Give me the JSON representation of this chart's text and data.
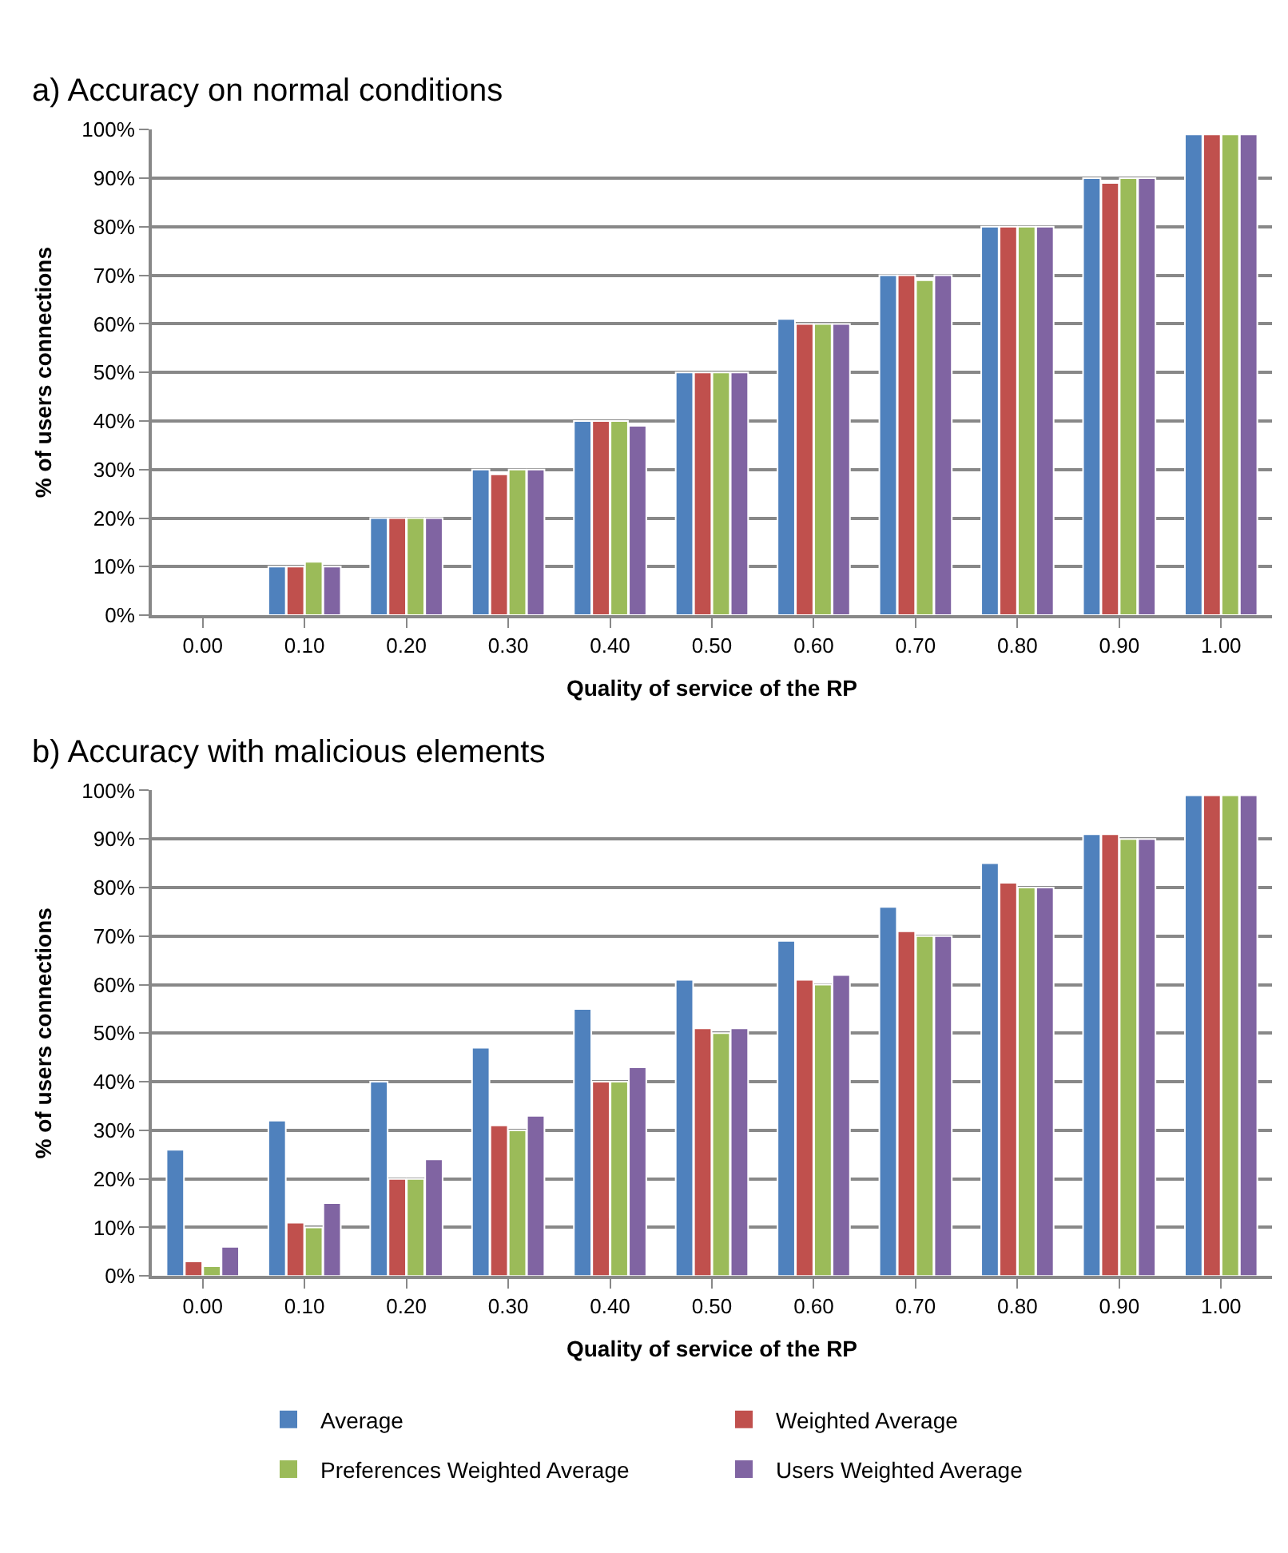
{
  "chart_data": [
    {
      "type": "bar",
      "title": "a) Accuracy on normal conditions",
      "xlabel": "Quality of service of the RP",
      "ylabel": "% of users connections",
      "categories": [
        "0.00",
        "0.10",
        "0.20",
        "0.30",
        "0.40",
        "0.50",
        "0.60",
        "0.70",
        "0.80",
        "0.90",
        "1.00"
      ],
      "series": [
        {
          "name": "Average",
          "color": "#4f81bd",
          "values": [
            null,
            10,
            20,
            30,
            40,
            50,
            61,
            70,
            80,
            90,
            99
          ]
        },
        {
          "name": "Weighted Average",
          "color": "#c0504d",
          "values": [
            null,
            10,
            20,
            29,
            40,
            50,
            60,
            70,
            80,
            89,
            99
          ]
        },
        {
          "name": "Preferences Weighted Average",
          "color": "#9bbb59",
          "values": [
            null,
            11,
            20,
            30,
            40,
            50,
            60,
            69,
            80,
            90,
            99
          ]
        },
        {
          "name": "Users Weighted Average",
          "color": "#8064a2",
          "values": [
            null,
            10,
            20,
            30,
            39,
            50,
            60,
            70,
            80,
            90,
            99
          ]
        }
      ],
      "ylim": [
        0,
        100
      ],
      "yticks": [
        {
          "value": 0,
          "label": "0%"
        },
        {
          "value": 10,
          "label": "10%"
        },
        {
          "value": 20,
          "label": "20%"
        },
        {
          "value": 30,
          "label": "30%"
        },
        {
          "value": 40,
          "label": "40%"
        },
        {
          "value": 50,
          "label": "50%"
        },
        {
          "value": 60,
          "label": "60%"
        },
        {
          "value": 70,
          "label": "70%"
        },
        {
          "value": 80,
          "label": "80%"
        },
        {
          "value": 90,
          "label": "90%"
        },
        {
          "value": 100,
          "label": "100%"
        }
      ],
      "grid": "y",
      "legend": "bottom"
    },
    {
      "type": "bar",
      "title": "b) Accuracy with malicious elements",
      "xlabel": "Quality of service of the RP",
      "ylabel": "% of users connections",
      "categories": [
        "0.00",
        "0.10",
        "0.20",
        "0.30",
        "0.40",
        "0.50",
        "0.60",
        "0.70",
        "0.80",
        "0.90",
        "1.00"
      ],
      "series": [
        {
          "color": "#4f81bd",
          "values": [
            26,
            32,
            40,
            47,
            55,
            61,
            69,
            76,
            85,
            91,
            99
          ]
        },
        {
          "color": "#c0504d",
          "values": [
            3,
            11,
            20,
            31,
            40,
            51,
            61,
            71,
            81,
            91,
            99
          ]
        },
        {
          "color": "#9bbb59",
          "values": [
            2,
            10,
            20,
            30,
            40,
            50,
            60,
            70,
            80,
            90,
            99
          ]
        },
        {
          "color": "#8064a2",
          "values": [
            6,
            15,
            24,
            33,
            43,
            51,
            62,
            70,
            80,
            90,
            99
          ]
        }
      ],
      "ylim": [
        0,
        100
      ],
      "yticks": [
        {
          "value": 0,
          "label": "0%"
        },
        {
          "value": 10,
          "label": "10%"
        },
        {
          "value": 20,
          "label": "20%"
        },
        {
          "value": 30,
          "label": "30%"
        },
        {
          "value": 40,
          "label": "40%"
        },
        {
          "value": 50,
          "label": "50%"
        },
        {
          "value": 60,
          "label": "60%"
        },
        {
          "value": 70,
          "label": "70%"
        },
        {
          "value": 80,
          "label": "80%"
        },
        {
          "value": 90,
          "label": "90%"
        },
        {
          "value": 100,
          "label": "100%"
        }
      ],
      "grid": "y"
    }
  ]
}
